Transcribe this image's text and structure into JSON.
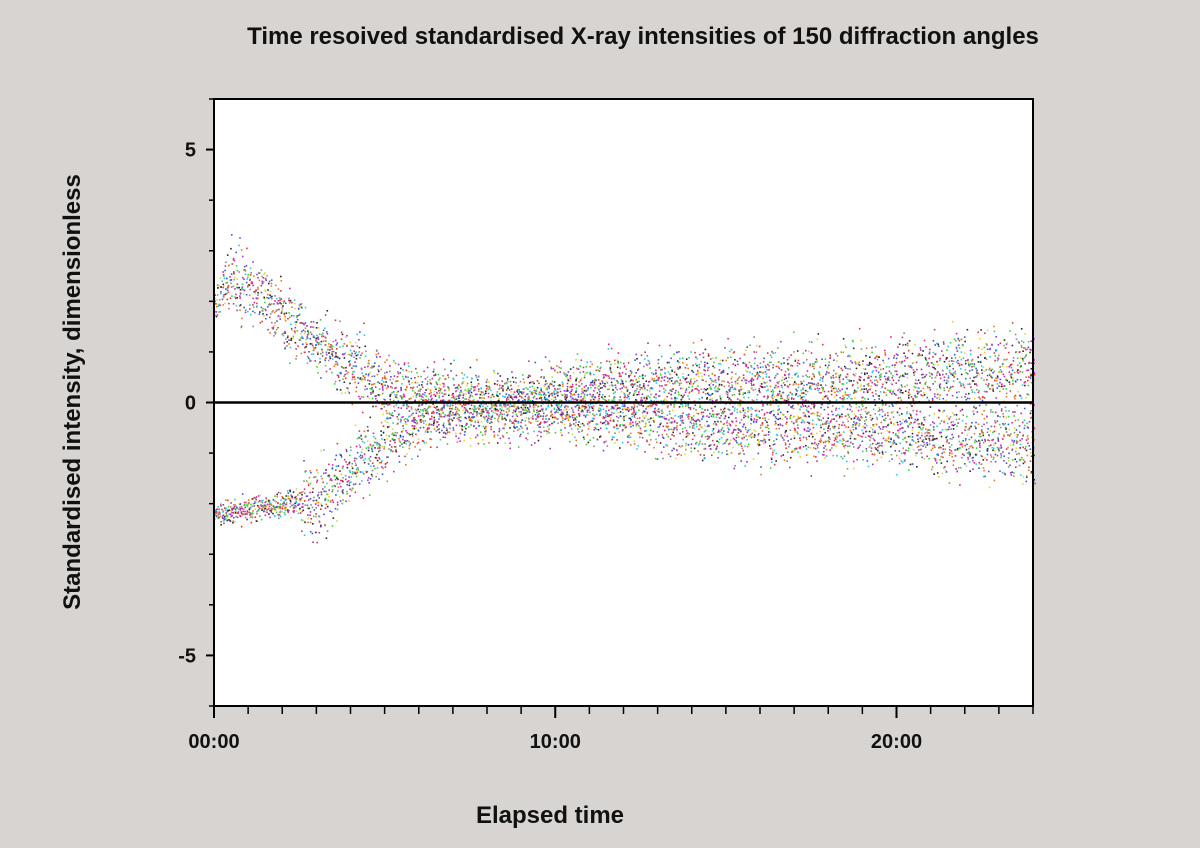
{
  "chart_data": {
    "type": "scatter",
    "title": "Time resoived standardised X-ray intensities of 150 diffraction angles",
    "xlabel": "Elapsed time",
    "ylabel": "Standardised intensity, dimensionless",
    "xlim": [
      "00:00",
      "24:00"
    ],
    "ylim": [
      -6,
      6
    ],
    "x_tick_labels": [
      "00:00",
      "10:00",
      "20:00"
    ],
    "x_tick_values_hours": [
      0,
      10,
      20
    ],
    "y_tick_labels": [
      "5",
      "0",
      "-5"
    ],
    "y_tick_values": [
      5,
      0,
      -5
    ],
    "series_count": 150,
    "reference_line_y": 0,
    "grid": false,
    "legend": "none",
    "colors": [
      "#e0219a",
      "#2a2a2a",
      "#3fd23f",
      "#9a39d6",
      "#2ec8e8",
      "#e8d23a",
      "#d63a3a",
      "#3a5ad6",
      "#e87a2a",
      "#8a8a8a"
    ],
    "envelope": {
      "time_hours": [
        0,
        0.5,
        1,
        2,
        3,
        4,
        5,
        6,
        8,
        10,
        12,
        14,
        16,
        18,
        20,
        22,
        24
      ],
      "upper_cluster_mean": [
        1.9,
        2.5,
        2.3,
        1.7,
        1.2,
        0.8,
        0.35,
        0.15,
        0.05,
        0.25,
        0.35,
        0.45,
        0.45,
        0.45,
        0.5,
        0.65,
        0.7
      ],
      "lower_cluster_mean": [
        -2.2,
        -2.15,
        -2.1,
        -2.0,
        -1.9,
        -1.4,
        -0.7,
        -0.3,
        -0.15,
        -0.2,
        -0.3,
        -0.45,
        -0.5,
        -0.5,
        -0.6,
        -0.7,
        -0.8
      ],
      "spread": [
        0.6,
        0.9,
        0.9,
        0.85,
        0.85,
        0.85,
        0.85,
        0.8,
        0.75,
        0.75,
        0.8,
        0.85,
        0.9,
        0.9,
        0.9,
        0.95,
        0.95
      ]
    }
  }
}
